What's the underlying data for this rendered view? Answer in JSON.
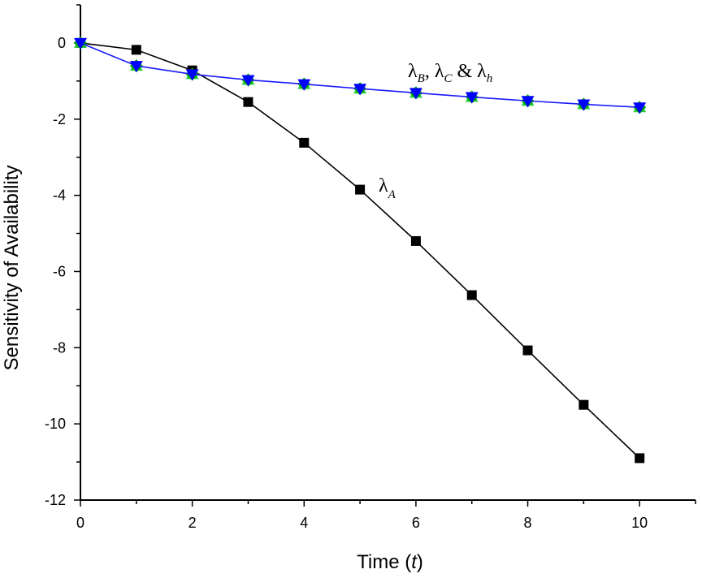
{
  "chart_data": {
    "type": "line",
    "xlabel": "Time (t)",
    "xlabel_parts": {
      "prefix": "Time (",
      "var": "t",
      "suffix": ")"
    },
    "ylabel": "Sensitivity of Availability",
    "xlim": [
      0,
      11
    ],
    "ylim": [
      -12,
      1
    ],
    "x_ticks": [
      0,
      2,
      4,
      6,
      8,
      10
    ],
    "y_ticks": [
      0,
      -2,
      -4,
      -6,
      -8,
      -10,
      -12
    ],
    "x_tick_labels": [
      "0",
      "2",
      "4",
      "6",
      "8",
      "10"
    ],
    "y_tick_labels": [
      "0",
      "-2",
      "-4",
      "-6",
      "-8",
      "-10",
      "-12"
    ],
    "grid": false,
    "x": [
      0,
      1,
      2,
      3,
      4,
      5,
      6,
      7,
      8,
      9,
      10
    ],
    "series": [
      {
        "key": "lambda_A",
        "marker": "square",
        "color": "#000000",
        "values": [
          0,
          -0.18,
          -0.72,
          -1.55,
          -2.62,
          -3.85,
          -5.2,
          -6.62,
          -8.07,
          -9.5,
          -10.9
        ]
      },
      {
        "key": "lambda_B",
        "marker": "triangle-up",
        "color": "#2ecc40",
        "values": [
          0,
          -0.6,
          -0.82,
          -0.97,
          -1.08,
          -1.2,
          -1.31,
          -1.42,
          -1.52,
          -1.61,
          -1.69
        ]
      },
      {
        "key": "lambda_C",
        "marker": "diamond",
        "color": "#00aa00",
        "values": [
          0,
          -0.6,
          -0.82,
          -0.97,
          -1.08,
          -1.2,
          -1.31,
          -1.42,
          -1.52,
          -1.61,
          -1.69
        ]
      },
      {
        "key": "lambda_h",
        "marker": "triangle-down",
        "color": "#0000ff",
        "line_color": "#1a1aff",
        "values": [
          0,
          -0.6,
          -0.82,
          -0.97,
          -1.08,
          -1.2,
          -1.31,
          -1.42,
          -1.52,
          -1.61,
          -1.69
        ]
      }
    ],
    "annotations": [
      {
        "target": "lambda_B_C_h",
        "sym": "λ",
        "parts": [
          "λ",
          "B",
          ", λ",
          "C",
          " & λ",
          "h"
        ]
      },
      {
        "target": "lambda_A",
        "sym": "λ",
        "parts": [
          "λ",
          "A"
        ]
      }
    ]
  }
}
